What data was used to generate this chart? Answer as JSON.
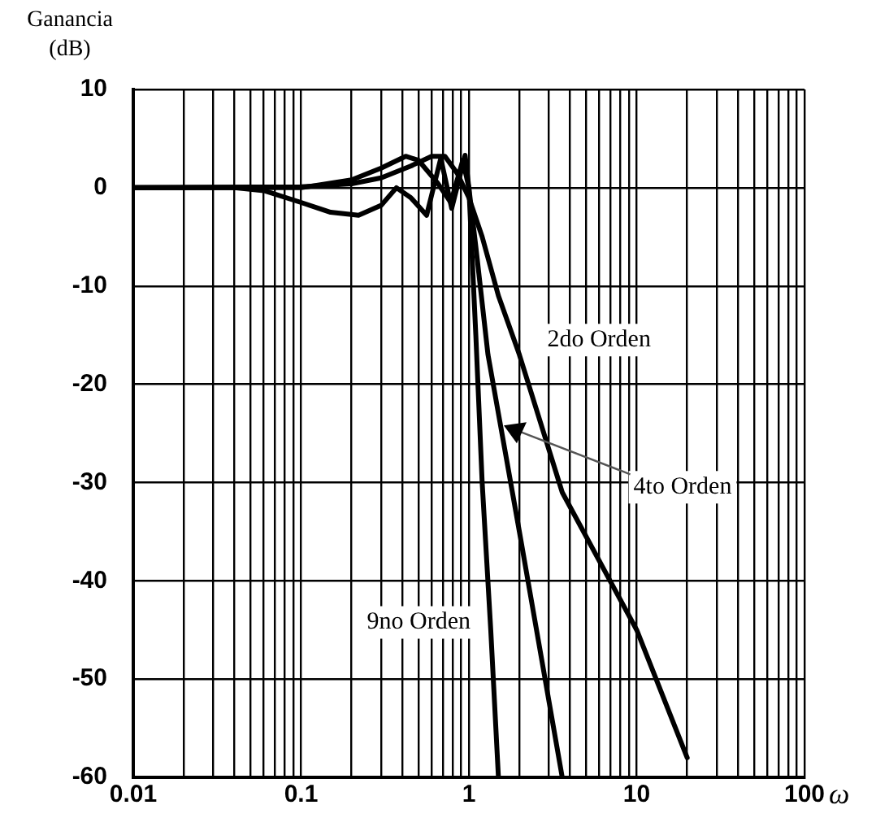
{
  "chart_data": {
    "type": "line",
    "ylabel": "Ganancia (dB)",
    "xlabel": "ω",
    "log": "x",
    "grid": true,
    "legend": false,
    "marker": "none",
    "line_style": "solid",
    "xlim": [
      0.01,
      100
    ],
    "ylim": [
      -60,
      10
    ],
    "xticks": [
      0.01,
      {
        "value": 0.02,
        "label": null
      },
      {
        "value": 0.03,
        "label": null
      },
      {
        "value": 0.04,
        "label": null
      },
      {
        "value": 0.05,
        "label": null
      },
      {
        "value": 0.06,
        "label": null
      },
      {
        "value": 0.07,
        "label": null
      },
      {
        "value": 0.08,
        "label": null
      },
      {
        "value": 0.09,
        "label": null
      },
      0.1,
      {
        "value": 0.2,
        "label": null
      },
      {
        "value": 0.3,
        "label": null
      },
      {
        "value": 0.4,
        "label": null
      },
      {
        "value": 0.5,
        "label": null
      },
      {
        "value": 0.6,
        "label": null
      },
      {
        "value": 0.7,
        "label": null
      },
      {
        "value": 0.8,
        "label": null
      },
      {
        "value": 0.9,
        "label": null
      },
      1,
      {
        "value": 2,
        "label": null
      },
      {
        "value": 3,
        "label": null
      },
      {
        "value": 4,
        "label": null
      },
      {
        "value": 5,
        "label": null
      },
      {
        "value": 6,
        "label": null
      },
      {
        "value": 7,
        "label": null
      },
      {
        "value": 8,
        "label": null
      },
      {
        "value": 9,
        "label": null
      },
      10,
      {
        "value": 20,
        "label": null
      },
      {
        "value": 30,
        "label": null
      },
      {
        "value": 40,
        "label": null
      },
      {
        "value": 50,
        "label": null
      },
      {
        "value": 60,
        "label": null
      },
      {
        "value": 70,
        "label": null
      },
      {
        "value": 80,
        "label": null
      },
      {
        "value": 90,
        "label": null
      },
      100
    ],
    "yticks": [
      -60,
      -50,
      -40,
      -30,
      -20,
      -10,
      0,
      10
    ],
    "series": [
      {
        "name": "2do Orden",
        "color": "#000000",
        "x": [
          0.01,
          0.1,
          0.2,
          0.3,
          0.45,
          0.6,
          0.72,
          0.85,
          1,
          1.2,
          1.5,
          2,
          3.6,
          10,
          20
        ],
        "values": [
          0,
          0.1,
          0.4,
          1,
          2.2,
          3.2,
          3.2,
          1.5,
          -1,
          -5,
          -11,
          -17,
          -31,
          -45,
          -58
        ]
      },
      {
        "name": "4to Orden",
        "color": "#000000",
        "x": [
          0.01,
          0.1,
          0.2,
          0.3,
          0.42,
          0.5,
          0.65,
          0.78,
          0.92,
          1,
          1.1,
          1.3,
          2,
          3.6
        ],
        "values": [
          0,
          0,
          0.8,
          2,
          3.2,
          2.8,
          0.5,
          -1.5,
          2.8,
          0,
          -6,
          -17,
          -35,
          -60
        ]
      },
      {
        "name": "9no Orden",
        "color": "#000000",
        "x": [
          0.01,
          0.04,
          0.06,
          0.1,
          0.15,
          0.22,
          0.3,
          0.37,
          0.45,
          0.56,
          0.68,
          0.79,
          0.95,
          1,
          1.1,
          1.2,
          1.35,
          1.5
        ],
        "values": [
          0,
          0,
          -0.3,
          -1.5,
          -2.5,
          -2.8,
          -1.8,
          0,
          -1,
          -2.8,
          3,
          -2.1,
          3.3,
          0,
          -15,
          -30,
          -45,
          -60
        ]
      }
    ]
  }
}
